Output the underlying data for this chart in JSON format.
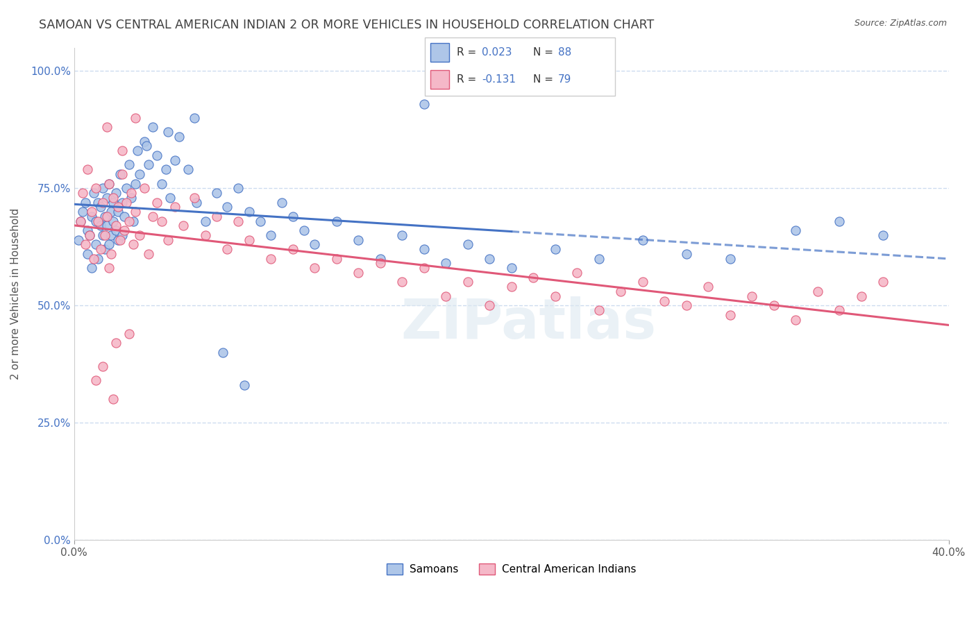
{
  "title": "SAMOAN VS CENTRAL AMERICAN INDIAN 2 OR MORE VEHICLES IN HOUSEHOLD CORRELATION CHART",
  "source": "Source: ZipAtlas.com",
  "ylabel": "2 or more Vehicles in Household",
  "xmin": 0.0,
  "xmax": 0.4,
  "ymin": 0.0,
  "ymax": 1.05,
  "yticks": [
    0.0,
    0.25,
    0.5,
    0.75,
    1.0
  ],
  "ytick_labels": [
    "0.0%",
    "25.0%",
    "50.0%",
    "75.0%",
    "100.0%"
  ],
  "xticks": [
    0.0,
    0.4
  ],
  "xtick_labels": [
    "0.0%",
    "40.0%"
  ],
  "samoans_R": 0.023,
  "samoans_N": 88,
  "cai_R": -0.131,
  "cai_N": 79,
  "samoans_color": "#aec6e8",
  "cai_color": "#f5b8c8",
  "samoans_line_color": "#4472c4",
  "cai_line_color": "#e05878",
  "background_color": "#ffffff",
  "grid_color": "#c8d8ee",
  "title_color": "#404040",
  "legend_label_samoans": "Samoans",
  "legend_label_cai": "Central American Indians",
  "samoans_x": [
    0.002,
    0.003,
    0.004,
    0.005,
    0.006,
    0.006,
    0.007,
    0.008,
    0.008,
    0.009,
    0.01,
    0.01,
    0.011,
    0.011,
    0.012,
    0.012,
    0.013,
    0.013,
    0.014,
    0.014,
    0.015,
    0.015,
    0.016,
    0.016,
    0.017,
    0.017,
    0.018,
    0.018,
    0.019,
    0.019,
    0.02,
    0.02,
    0.021,
    0.022,
    0.022,
    0.023,
    0.024,
    0.025,
    0.026,
    0.027,
    0.028,
    0.029,
    0.03,
    0.032,
    0.034,
    0.036,
    0.038,
    0.04,
    0.042,
    0.044,
    0.046,
    0.048,
    0.052,
    0.056,
    0.06,
    0.065,
    0.07,
    0.075,
    0.08,
    0.085,
    0.09,
    0.095,
    0.1,
    0.105,
    0.11,
    0.12,
    0.13,
    0.14,
    0.15,
    0.16,
    0.17,
    0.18,
    0.19,
    0.2,
    0.22,
    0.24,
    0.26,
    0.28,
    0.3,
    0.33,
    0.35,
    0.37,
    0.16,
    0.055,
    0.043,
    0.033,
    0.068,
    0.078
  ],
  "samoans_y": [
    0.64,
    0.68,
    0.7,
    0.72,
    0.66,
    0.61,
    0.65,
    0.69,
    0.58,
    0.74,
    0.63,
    0.68,
    0.72,
    0.6,
    0.67,
    0.71,
    0.65,
    0.75,
    0.69,
    0.62,
    0.73,
    0.67,
    0.76,
    0.63,
    0.7,
    0.65,
    0.72,
    0.68,
    0.66,
    0.74,
    0.7,
    0.64,
    0.78,
    0.72,
    0.65,
    0.69,
    0.75,
    0.8,
    0.73,
    0.68,
    0.76,
    0.83,
    0.78,
    0.85,
    0.8,
    0.88,
    0.82,
    0.76,
    0.79,
    0.73,
    0.81,
    0.86,
    0.79,
    0.72,
    0.68,
    0.74,
    0.71,
    0.75,
    0.7,
    0.68,
    0.65,
    0.72,
    0.69,
    0.66,
    0.63,
    0.68,
    0.64,
    0.6,
    0.65,
    0.62,
    0.59,
    0.63,
    0.6,
    0.58,
    0.62,
    0.6,
    0.64,
    0.61,
    0.6,
    0.66,
    0.68,
    0.65,
    0.93,
    0.9,
    0.87,
    0.84,
    0.4,
    0.33
  ],
  "cai_x": [
    0.003,
    0.004,
    0.005,
    0.006,
    0.007,
    0.008,
    0.009,
    0.01,
    0.011,
    0.012,
    0.013,
    0.014,
    0.015,
    0.016,
    0.017,
    0.018,
    0.019,
    0.02,
    0.021,
    0.022,
    0.023,
    0.024,
    0.025,
    0.026,
    0.027,
    0.028,
    0.03,
    0.032,
    0.034,
    0.036,
    0.038,
    0.04,
    0.043,
    0.046,
    0.05,
    0.055,
    0.06,
    0.065,
    0.07,
    0.075,
    0.08,
    0.09,
    0.1,
    0.11,
    0.12,
    0.13,
    0.14,
    0.15,
    0.16,
    0.17,
    0.18,
    0.19,
    0.2,
    0.21,
    0.22,
    0.23,
    0.24,
    0.25,
    0.26,
    0.27,
    0.28,
    0.29,
    0.3,
    0.31,
    0.32,
    0.33,
    0.34,
    0.35,
    0.36,
    0.37,
    0.015,
    0.022,
    0.028,
    0.016,
    0.019,
    0.013,
    0.025,
    0.01,
    0.018
  ],
  "cai_y": [
    0.68,
    0.74,
    0.63,
    0.79,
    0.65,
    0.7,
    0.6,
    0.75,
    0.68,
    0.62,
    0.72,
    0.65,
    0.69,
    0.76,
    0.61,
    0.73,
    0.67,
    0.71,
    0.64,
    0.78,
    0.66,
    0.72,
    0.68,
    0.74,
    0.63,
    0.7,
    0.65,
    0.75,
    0.61,
    0.69,
    0.72,
    0.68,
    0.64,
    0.71,
    0.67,
    0.73,
    0.65,
    0.69,
    0.62,
    0.68,
    0.64,
    0.6,
    0.62,
    0.58,
    0.6,
    0.57,
    0.59,
    0.55,
    0.58,
    0.52,
    0.55,
    0.5,
    0.54,
    0.56,
    0.52,
    0.57,
    0.49,
    0.53,
    0.55,
    0.51,
    0.5,
    0.54,
    0.48,
    0.52,
    0.5,
    0.47,
    0.53,
    0.49,
    0.52,
    0.55,
    0.88,
    0.83,
    0.9,
    0.58,
    0.42,
    0.37,
    0.44,
    0.34,
    0.3
  ]
}
